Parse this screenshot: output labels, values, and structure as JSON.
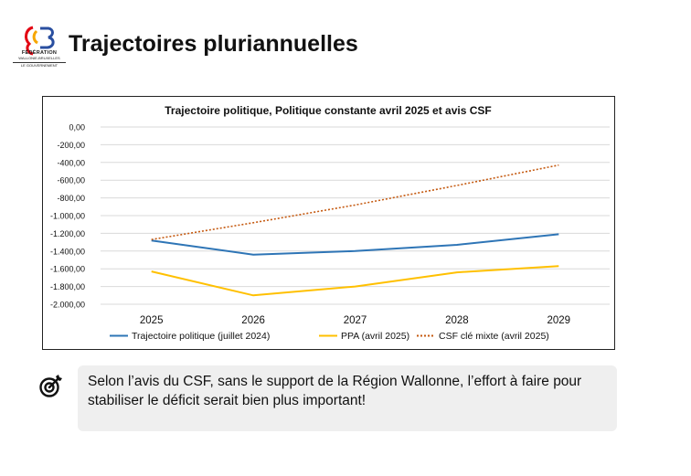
{
  "header": {
    "title": "Trajectoires pluriannuelles",
    "logo_lines": [
      "FÉDÉRATION",
      "WALLONIE-BRUXELLES",
      "LE GOUVERNEMENT"
    ]
  },
  "note": {
    "text": "Selon l’avis du CSF, sans le support de la Région Wallonne, l’effort à faire pour stabiliser le déficit serait bien plus important!"
  },
  "icons": {
    "note_icon": "target-arrow-icon",
    "logo": "fwb-logo-icon"
  },
  "chart_data": {
    "type": "line",
    "title": "Trajectoire politique, Politique constante avril 2025 et avis CSF",
    "x": [
      "2025",
      "2026",
      "2027",
      "2028",
      "2029"
    ],
    "ylim": [
      -2000,
      0
    ],
    "yticks": [
      "0,00",
      "-200,00",
      "-400,00",
      "-600,00",
      "-800,00",
      "-1.000,00",
      "-1.200,00",
      "-1.400,00",
      "-1.600,00",
      "-1.800,00",
      "-2.000,00"
    ],
    "grid": true,
    "legend_position": "bottom",
    "series": [
      {
        "name": "Trajectoire politique (juillet 2024)",
        "values": [
          -1280,
          -1440,
          -1400,
          -1330,
          -1210
        ],
        "color": "#2e75b6",
        "style": "solid"
      },
      {
        "name": "PPA (avril 2025)",
        "values": [
          -1630,
          -1900,
          -1800,
          -1640,
          -1570
        ],
        "color": "#ffc000",
        "style": "solid"
      },
      {
        "name": "CSF clé mixte (avril 2025)",
        "values": [
          -1270,
          -1080,
          -880,
          -660,
          -430
        ],
        "color": "#c55a11",
        "style": "dotted"
      }
    ]
  }
}
